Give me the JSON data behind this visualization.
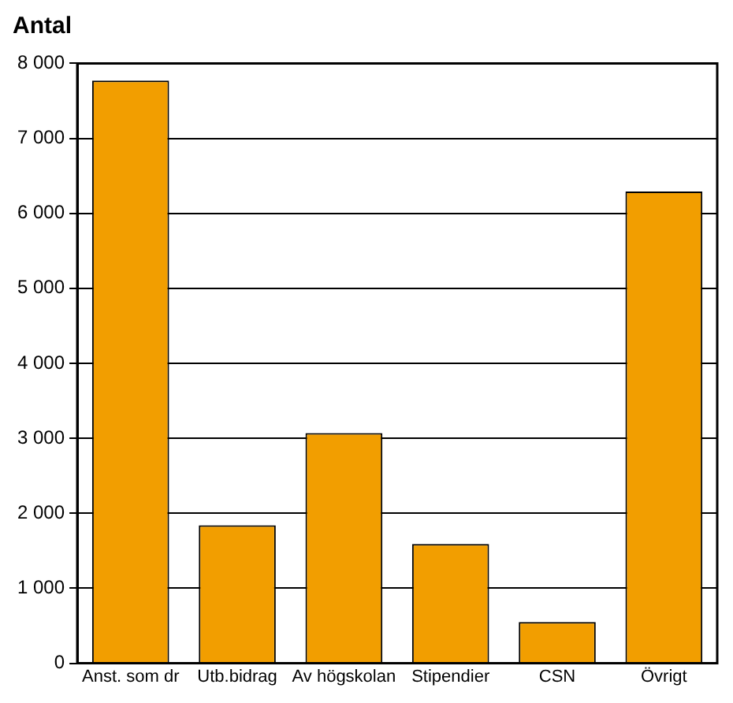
{
  "chart_data": {
    "type": "bar",
    "ylabel": "Antal",
    "categories": [
      "Anst. som dr",
      "Utb.bidrag",
      "Av högskolan",
      "Stipendier",
      "CSN",
      "Övrigt"
    ],
    "values": [
      7770,
      1840,
      3070,
      1590,
      550,
      6290
    ],
    "color": "#f29e00",
    "ylim": [
      0,
      8000
    ],
    "yticks": [
      {
        "value": 0,
        "label": "0"
      },
      {
        "value": 1000,
        "label": "1 000"
      },
      {
        "value": 2000,
        "label": "2 000"
      },
      {
        "value": 3000,
        "label": "3 000"
      },
      {
        "value": 4000,
        "label": "4 000"
      },
      {
        "value": 5000,
        "label": "5 000"
      },
      {
        "value": 6000,
        "label": "6 000"
      },
      {
        "value": 7000,
        "label": "7 000"
      },
      {
        "value": 8000,
        "label": "8 000"
      }
    ],
    "grid": "y",
    "legend": false
  }
}
